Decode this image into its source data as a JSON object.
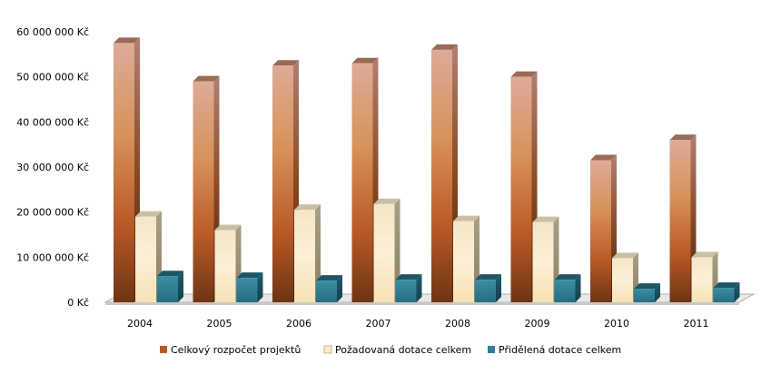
{
  "chart_data": {
    "type": "bar",
    "categories": [
      "2004",
      "2005",
      "2006",
      "2007",
      "2008",
      "2009",
      "2010",
      "2011"
    ],
    "series": [
      {
        "name": "Celkový rozpočet projektů",
        "color": "#c9652a",
        "values": [
          57500000,
          49000000,
          52500000,
          53000000,
          56000000,
          50000000,
          31500000,
          36000000
        ]
      },
      {
        "name": "Požadovaná dotace celkem",
        "color": "#fbeccc",
        "values": [
          19000000,
          16000000,
          20500000,
          21800000,
          18000000,
          17800000,
          9800000,
          10000000
        ]
      },
      {
        "name": "Přidělená dotace celkem",
        "color": "#2e7f94",
        "values": [
          5800000,
          5400000,
          4800000,
          5000000,
          5000000,
          5000000,
          3000000,
          3200000
        ]
      }
    ],
    "y_ticks": [
      "0 Kč",
      "10 000 000 Kč",
      "20 000 000 Kč",
      "30 000 000 Kč",
      "40 000 000 Kč",
      "50 000 000 Kč",
      "60 000 000 Kč"
    ],
    "ylim": [
      0,
      60000000
    ],
    "grid": false,
    "legend_position": "bottom"
  }
}
